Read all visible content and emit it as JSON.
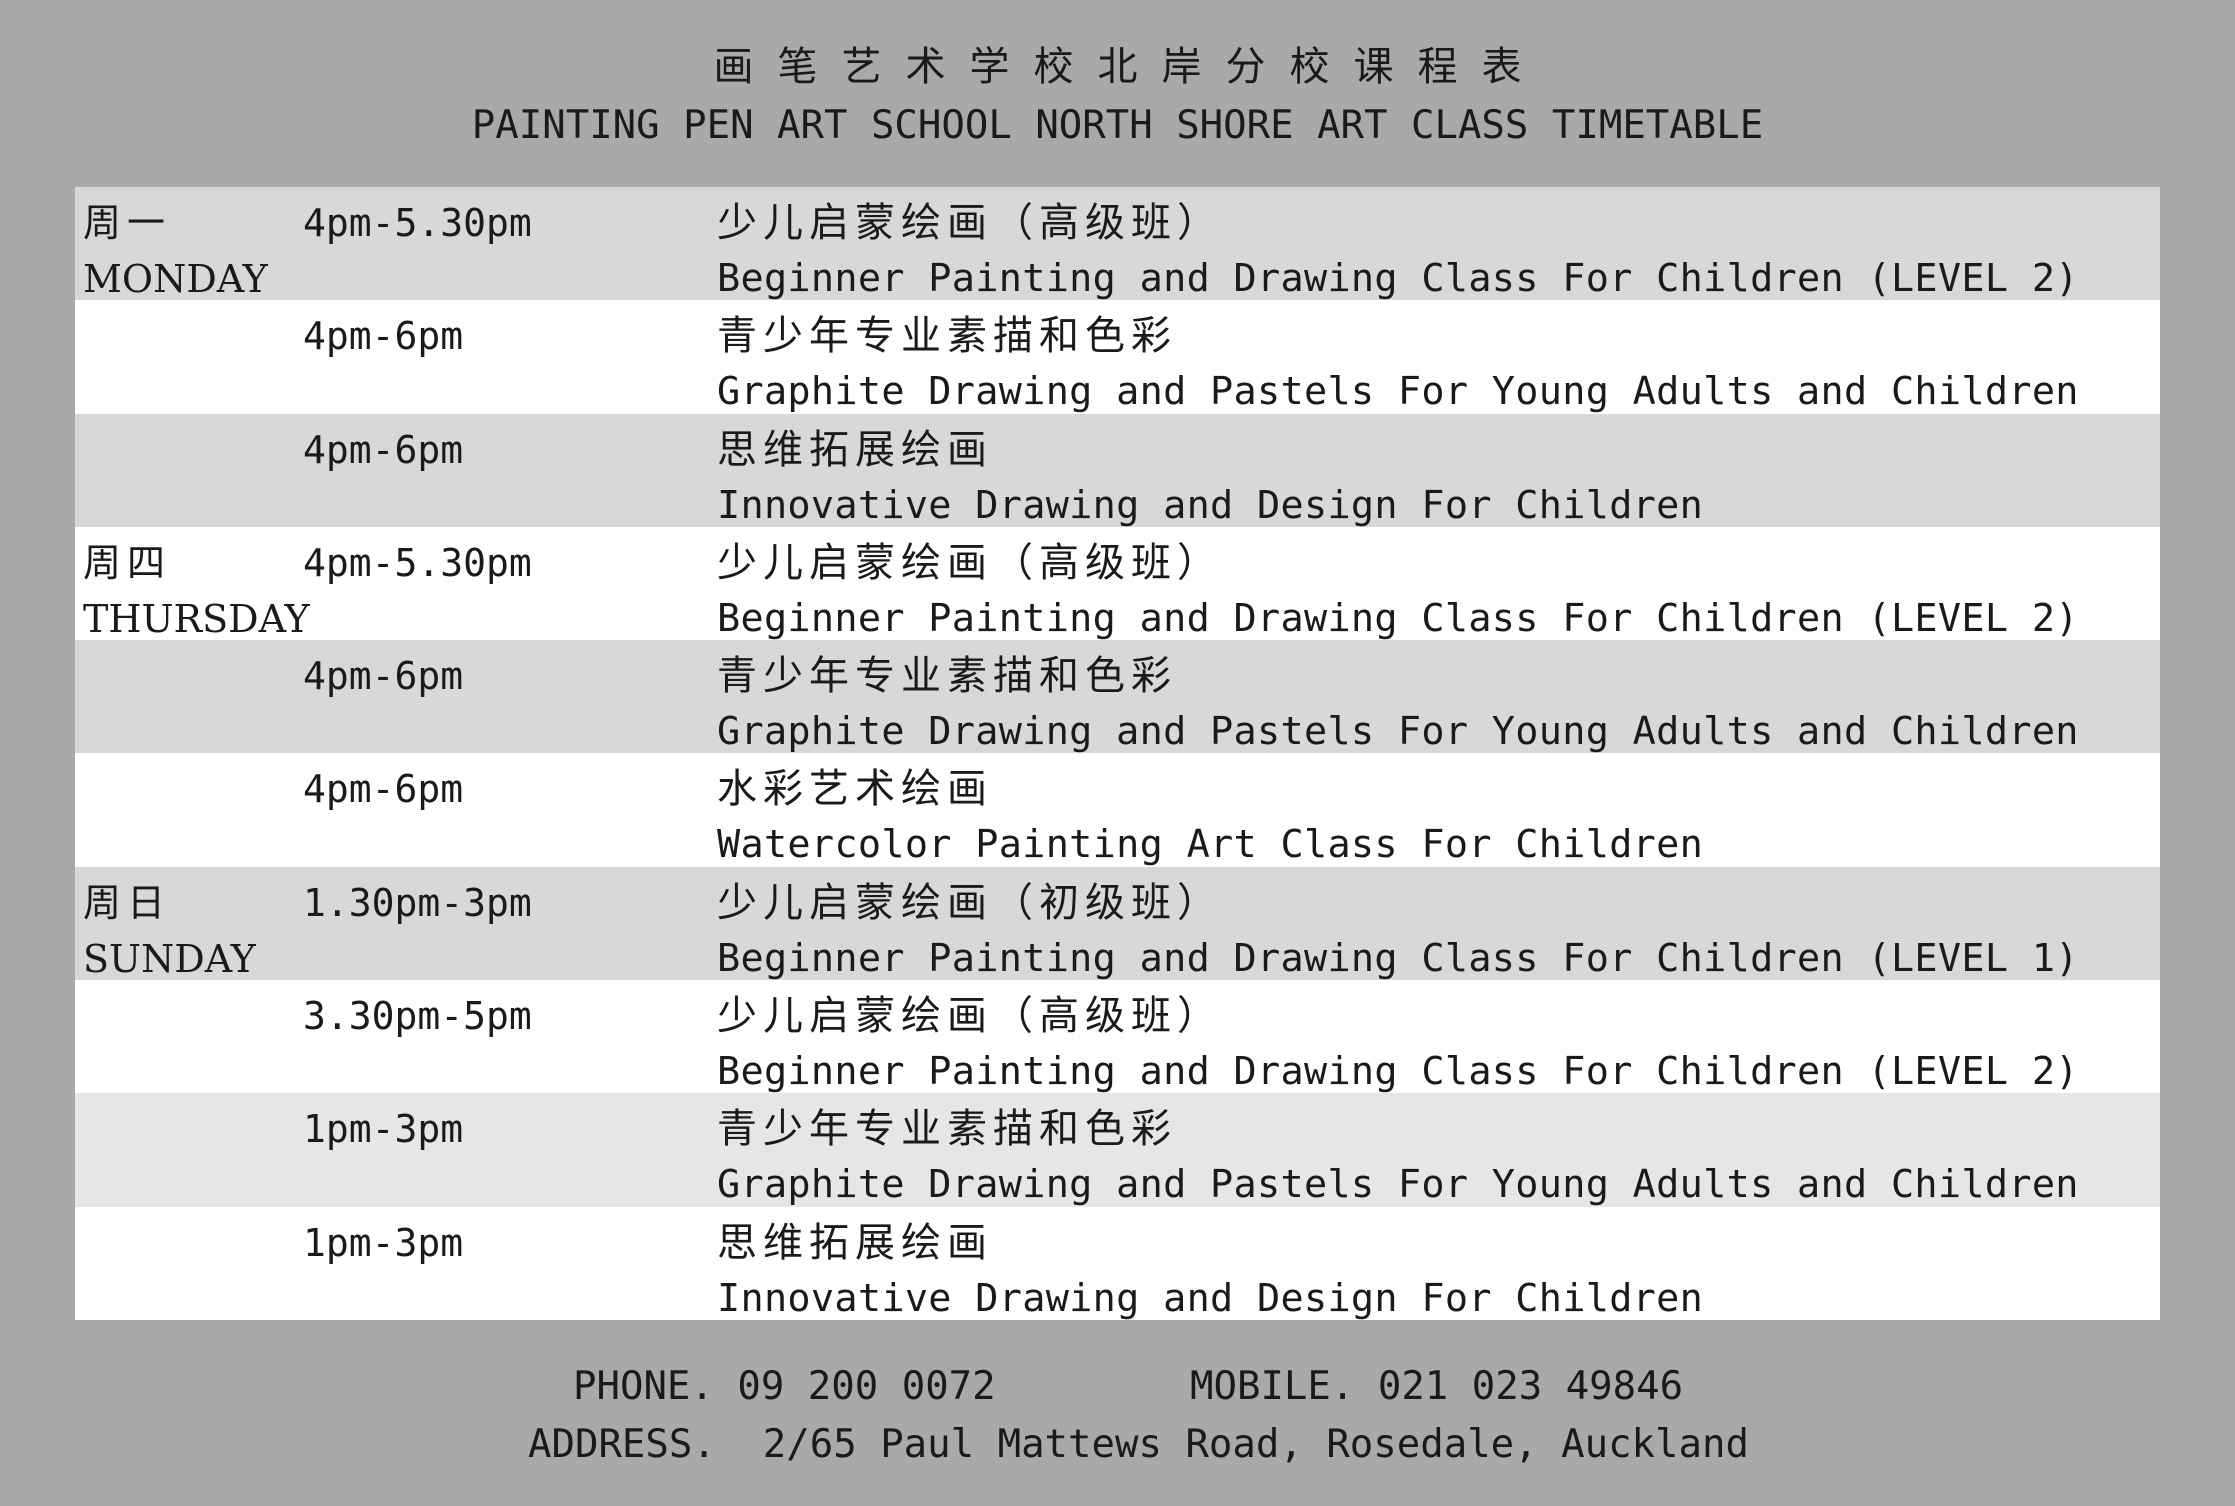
{
  "header": {
    "title_cn": "画笔艺术学校北岸分校课程表",
    "title_en": "PAINTING PEN ART SCHOOL NORTH SHORE ART CLASS TIMETABLE"
  },
  "rows": [
    {
      "day_cn": "周一",
      "day_en": "MONDAY",
      "time": "4pm-5.30pm",
      "course_cn": "少儿启蒙绘画（高级班）",
      "course_en": "Beginner Painting and Drawing Class For Children (LEVEL 2)"
    },
    {
      "day_cn": "",
      "day_en": "",
      "time": "4pm-6pm",
      "course_cn": "青少年专业素描和色彩",
      "course_en": "Graphite Drawing and Pastels For Young Adults and Children"
    },
    {
      "day_cn": "",
      "day_en": "",
      "time": "4pm-6pm",
      "course_cn": "思维拓展绘画",
      "course_en": "Innovative Drawing and Design For Children"
    },
    {
      "day_cn": "周四",
      "day_en": "THURSDAY",
      "time": "4pm-5.30pm",
      "course_cn": "少儿启蒙绘画（高级班）",
      "course_en": "Beginner Painting and Drawing Class For Children (LEVEL 2)"
    },
    {
      "day_cn": "",
      "day_en": "",
      "time": "4pm-6pm",
      "course_cn": "青少年专业素描和色彩",
      "course_en": "Graphite Drawing and Pastels For Young Adults and Children"
    },
    {
      "day_cn": "",
      "day_en": "",
      "time": "4pm-6pm",
      "course_cn": "水彩艺术绘画",
      "course_en": "Watercolor Painting Art Class For Children"
    },
    {
      "day_cn": "周日",
      "day_en": "SUNDAY",
      "time": "1.30pm-3pm",
      "course_cn": "少儿启蒙绘画（初级班）",
      "course_en": "Beginner Painting and Drawing Class For Children (LEVEL 1)"
    },
    {
      "day_cn": "",
      "day_en": "",
      "time": "3.30pm-5pm",
      "course_cn": "少儿启蒙绘画（高级班）",
      "course_en": "Beginner Painting and Drawing Class For Children (LEVEL 2)"
    },
    {
      "day_cn": "",
      "day_en": "",
      "time": "1pm-3pm",
      "course_cn": "青少年专业素描和色彩",
      "course_en": "Graphite Drawing and Pastels For Young Adults and Children"
    },
    {
      "day_cn": "",
      "day_en": "",
      "time": "1pm-3pm",
      "course_cn": "思维拓展绘画",
      "course_en": "Innovative Drawing and Design For Children"
    }
  ],
  "footer": {
    "phone": "PHONE. 09 200 0072",
    "mobile": "MOBILE. 021 023 49846",
    "address": "ADDRESS.  2/65 Paul Mattews Road, Rosedale, Auckland"
  },
  "colors": {
    "background": "#aba8a8",
    "row_shade": "#d8d8d8",
    "row_white": "#ffffff",
    "row_light": "#e6e6e6"
  }
}
